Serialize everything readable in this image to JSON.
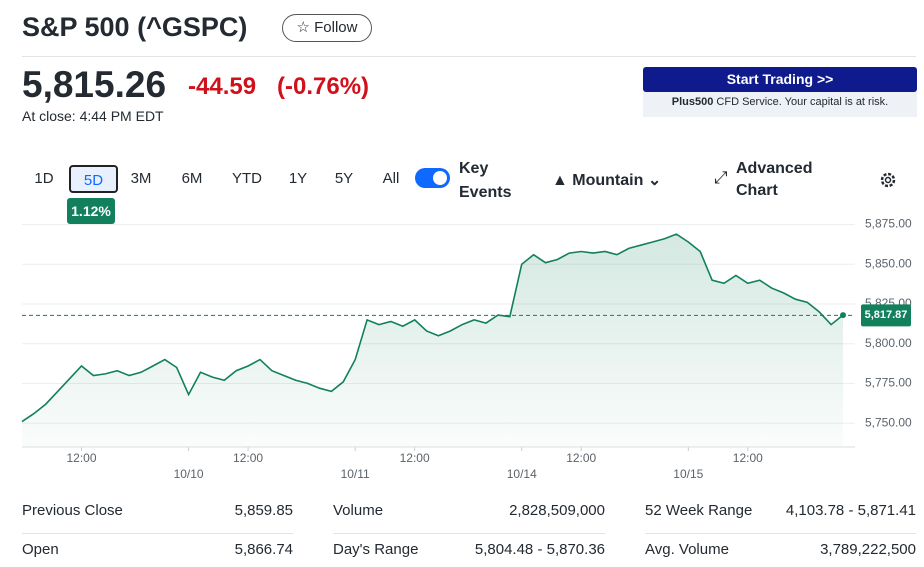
{
  "header": {
    "title": "S&P 500 (^GSPC)",
    "follow": "Follow"
  },
  "quote": {
    "price": "5,815.26",
    "change": "-44.59",
    "change_percent": "(-0.76%)",
    "close_note": "At close: 4:44 PM EDT"
  },
  "ad": {
    "button": "Start Trading >>",
    "brand": "Plus500",
    "note": "CFD Service. Your capital is at risk."
  },
  "ranges": [
    "1D",
    "5D",
    "3M",
    "6M",
    "YTD",
    "1Y",
    "5Y",
    "All"
  ],
  "range_badge": "1.12%",
  "controls": {
    "key_events": "Key Events",
    "chart_type": "Mountain",
    "advanced": "Advanced Chart"
  },
  "chart_data": {
    "type": "area",
    "color": "#12805c",
    "categories": [
      null,
      null,
      null,
      null,
      null,
      "12:00",
      null,
      null,
      null,
      null,
      null,
      null,
      null,
      null,
      "10/10",
      null,
      null,
      null,
      null,
      "12:00",
      null,
      null,
      null,
      null,
      null,
      null,
      null,
      null,
      "10/11",
      null,
      null,
      null,
      null,
      "12:00",
      null,
      null,
      null,
      null,
      null,
      null,
      null,
      null,
      "10/14",
      null,
      null,
      null,
      null,
      "12:00",
      null,
      null,
      null,
      null,
      null,
      null,
      null,
      null,
      "10/15",
      null,
      null,
      null,
      null,
      "12:00",
      null,
      null,
      null,
      null,
      null,
      null,
      null,
      null
    ],
    "values": [
      5751,
      5756,
      5762,
      5770,
      5778,
      5786,
      5780,
      5781,
      5783,
      5780,
      5782,
      5786,
      5790,
      5785,
      5768,
      5782,
      5779,
      5777,
      5783,
      5786,
      5790,
      5783,
      5780,
      5777,
      5775,
      5772,
      5770,
      5776,
      5790,
      5815,
      5812,
      5814,
      5811,
      5815,
      5808,
      5805,
      5808,
      5812,
      5815,
      5813,
      5818,
      5817,
      5850,
      5856,
      5851,
      5853,
      5857,
      5858,
      5857,
      5858,
      5856,
      5860,
      5862,
      5864,
      5866,
      5869,
      5864,
      5858,
      5840,
      5838,
      5843,
      5838,
      5840,
      5835,
      5832,
      5828,
      5826,
      5820,
      5812,
      5818
    ],
    "ylim": [
      5735,
      5881
    ],
    "yticks": [
      {
        "value": 5750,
        "label": "5,750.00"
      },
      {
        "value": 5775,
        "label": "5,775.00"
      },
      {
        "value": 5800,
        "label": "5,800.00"
      },
      {
        "value": 5825,
        "label": "5,825.00"
      },
      {
        "value": 5850,
        "label": "5,850.00"
      },
      {
        "value": 5875,
        "label": "5,875.00"
      }
    ],
    "grid": true,
    "last_price": {
      "value": 5817.87,
      "label": "5,817.87"
    }
  },
  "stats": [
    {
      "label": "Previous Close",
      "value": "5,859.85"
    },
    {
      "label": "Volume",
      "value": "2,828,509,000"
    },
    {
      "label": "52 Week Range",
      "value": "4,103.78 - 5,871.41"
    },
    {
      "label": "Open",
      "value": "5,866.74"
    },
    {
      "label": "Day's Range",
      "value": "5,804.48 - 5,870.36"
    },
    {
      "label": "Avg. Volume",
      "value": "3,789,222,500"
    }
  ]
}
